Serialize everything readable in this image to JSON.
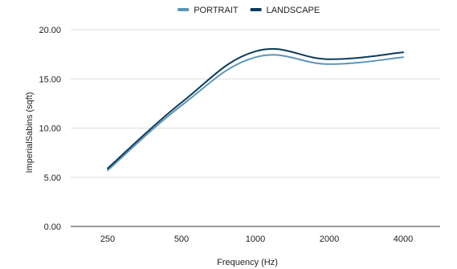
{
  "chart_data": {
    "type": "line",
    "xlabel": "Frequency (Hz)",
    "ylabel": "ImperialSabins (sqft)",
    "categories": [
      "250",
      "500",
      "1000",
      "2000",
      "4000"
    ],
    "ylim": [
      0,
      20
    ],
    "yticks": [
      "0.00",
      "5.00",
      "10.00",
      "15.00",
      "20.00"
    ],
    "grid": true,
    "legend_position": "top",
    "smooth": true,
    "series": [
      {
        "name": "PORTRAIT",
        "color": "#5b95b9",
        "values": [
          5.7,
          12.3,
          17.2,
          16.5,
          17.2
        ]
      },
      {
        "name": "LANDSCAPE",
        "color": "#0d3b5a",
        "values": [
          5.9,
          12.6,
          17.8,
          17.0,
          17.7
        ]
      }
    ]
  }
}
